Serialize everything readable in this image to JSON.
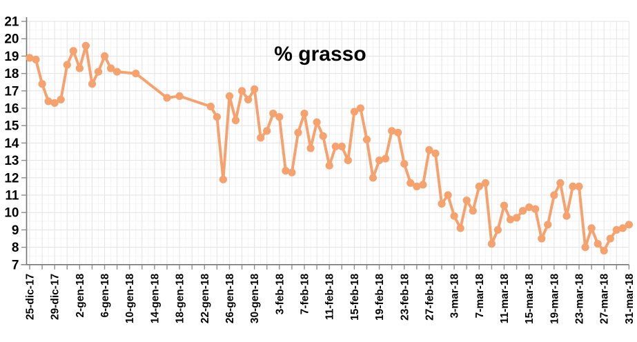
{
  "page": {
    "background_color": "#FFFFFF"
  },
  "chart": {
    "title": "% grasso",
    "accent_color": "#F5A26F",
    "axis_color": "#737373",
    "tick_color": "#8C8C8C",
    "label_color": "#000000",
    "grid_major_color": "#E3E3E3",
    "grid_minor_color": "#F4F4F4"
  },
  "chart_data": {
    "type": "line",
    "title": "% grasso",
    "series_name": "% grasso",
    "ylabel": "",
    "xlabel": "",
    "ylim": [
      7,
      21
    ],
    "y_tick_step": 1,
    "y_tick_labels": [
      "21",
      "20",
      "19",
      "18",
      "17",
      "16",
      "15",
      "14",
      "13",
      "12",
      "11",
      "10",
      "9",
      "8",
      "7"
    ],
    "x_unit": "days (x = days after 25-dic-17, daily measurements, some days missing)",
    "x_range_days": [
      0,
      96
    ],
    "x_label_every_days": 4,
    "x_minor_tick_every_days": 2,
    "x_tick_labels": [
      "25-dic-17",
      "29-dic-17",
      "2-gen-18",
      "6-gen-18",
      "10-gen-18",
      "14-gen-18",
      "18-gen-18",
      "22-gen-18",
      "26-gen-18",
      "30-gen-18",
      "3-feb-18",
      "7-feb-18",
      "11-feb-18",
      "15-feb-18",
      "19-feb-18",
      "23-feb-18",
      "27-feb-18",
      "3-mar-18",
      "7-mar-18",
      "11-mar-18",
      "15-mar-18",
      "19-mar-18",
      "23-mar-18",
      "27-mar-18",
      "31-mar-18"
    ],
    "grid": true,
    "legend": false,
    "marker": "circle",
    "points": [
      [
        0,
        18.9
      ],
      [
        1,
        18.8
      ],
      [
        2,
        17.4
      ],
      [
        3,
        16.4
      ],
      [
        4,
        16.3
      ],
      [
        5,
        16.5
      ],
      [
        6,
        18.5
      ],
      [
        7,
        19.3
      ],
      [
        8,
        18.3
      ],
      [
        9,
        19.6
      ],
      [
        10,
        17.4
      ],
      [
        11,
        18.1
      ],
      [
        12,
        19.0
      ],
      [
        13,
        18.3
      ],
      [
        14,
        18.1
      ],
      [
        17,
        18.0
      ],
      [
        22,
        16.6
      ],
      [
        24,
        16.7
      ],
      [
        29,
        16.1
      ],
      [
        30,
        15.5
      ],
      [
        31,
        11.9
      ],
      [
        32,
        16.7
      ],
      [
        33,
        15.3
      ],
      [
        34,
        17.0
      ],
      [
        35,
        16.5
      ],
      [
        36,
        17.1
      ],
      [
        37,
        14.3
      ],
      [
        38,
        14.7
      ],
      [
        39,
        15.7
      ],
      [
        40,
        15.5
      ],
      [
        41,
        12.4
      ],
      [
        42,
        12.3
      ],
      [
        43,
        14.6
      ],
      [
        44,
        15.7
      ],
      [
        45,
        13.7
      ],
      [
        46,
        15.2
      ],
      [
        47,
        14.4
      ],
      [
        48,
        12.7
      ],
      [
        49,
        13.8
      ],
      [
        50,
        13.8
      ],
      [
        51,
        13.0
      ],
      [
        52,
        15.8
      ],
      [
        53,
        16.0
      ],
      [
        54,
        14.2
      ],
      [
        55,
        12.0
      ],
      [
        56,
        13.0
      ],
      [
        57,
        13.1
      ],
      [
        58,
        14.7
      ],
      [
        59,
        14.6
      ],
      [
        60,
        12.8
      ],
      [
        61,
        11.7
      ],
      [
        62,
        11.5
      ],
      [
        63,
        11.6
      ],
      [
        64,
        13.6
      ],
      [
        65,
        13.4
      ],
      [
        66,
        10.5
      ],
      [
        67,
        11.0
      ],
      [
        68,
        9.8
      ],
      [
        69,
        9.1
      ],
      [
        70,
        10.7
      ],
      [
        71,
        10.1
      ],
      [
        72,
        11.5
      ],
      [
        73,
        11.7
      ],
      [
        74,
        8.2
      ],
      [
        75,
        9.0
      ],
      [
        76,
        10.4
      ],
      [
        77,
        9.6
      ],
      [
        78,
        9.7
      ],
      [
        79,
        10.1
      ],
      [
        80,
        10.3
      ],
      [
        81,
        10.2
      ],
      [
        82,
        8.5
      ],
      [
        83,
        9.3
      ],
      [
        84,
        11.0
      ],
      [
        85,
        11.7
      ],
      [
        86,
        9.8
      ],
      [
        87,
        11.5
      ],
      [
        88,
        11.5
      ],
      [
        89,
        8.0
      ],
      [
        90,
        9.1
      ],
      [
        91,
        8.2
      ],
      [
        92,
        7.8
      ],
      [
        93,
        8.5
      ],
      [
        94,
        9.0
      ],
      [
        95,
        9.1
      ],
      [
        96,
        9.3
      ]
    ]
  }
}
